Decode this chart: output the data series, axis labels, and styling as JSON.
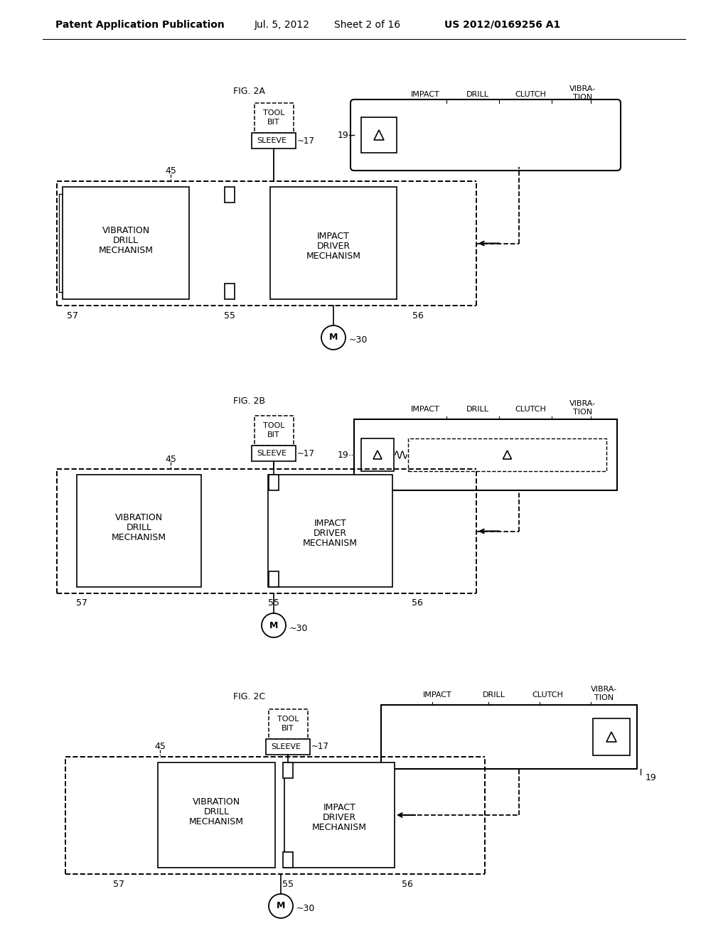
{
  "bg_color": "#ffffff",
  "header_text": "Patent Application Publication",
  "header_date": "Jul. 5, 2012",
  "header_sheet": "Sheet 2 of 16",
  "header_patent": "US 2012/0169256 A1"
}
